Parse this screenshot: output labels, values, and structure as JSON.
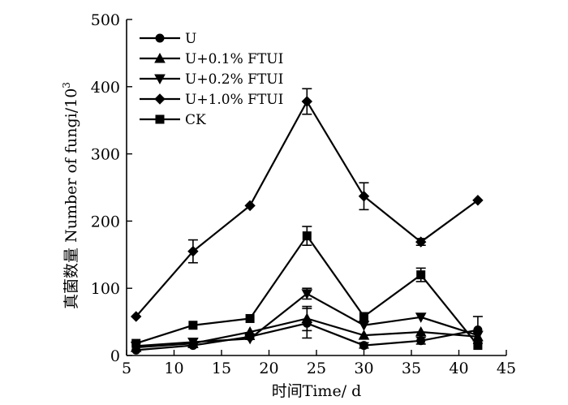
{
  "chart_data": {
    "type": "line",
    "title": "",
    "xlabel": "时间Time/ d",
    "ylabel": "真菌数量 Number of fungi/10",
    "ylabel_sup": "3",
    "xlim": [
      5,
      45
    ],
    "ylim": [
      0,
      500
    ],
    "xticks": [
      5,
      10,
      15,
      20,
      25,
      30,
      35,
      40,
      45
    ],
    "yticks": [
      0,
      100,
      200,
      300,
      400,
      500
    ],
    "grid": false,
    "legend_position": "top-left",
    "x": [
      6,
      12,
      18,
      24,
      30,
      36,
      42
    ],
    "series": [
      {
        "name": "U",
        "marker": "circle",
        "values": [
          8,
          15,
          28,
          48,
          15,
          22,
          38
        ],
        "errors": [
          0,
          3,
          4,
          22,
          4,
          5,
          20
        ]
      },
      {
        "name": "U+0.1% FTUI",
        "marker": "triangle-up",
        "values": [
          12,
          18,
          35,
          55,
          30,
          35,
          28
        ],
        "errors": [
          0,
          0,
          0,
          18,
          0,
          0,
          0
        ]
      },
      {
        "name": "U+0.2% FTUI",
        "marker": "triangle-down",
        "values": [
          14,
          20,
          25,
          92,
          45,
          57,
          30
        ],
        "errors": [
          0,
          0,
          0,
          8,
          0,
          0,
          0
        ]
      },
      {
        "name": "U+1.0% FTUI",
        "marker": "diamond",
        "values": [
          58,
          155,
          223,
          378,
          237,
          169,
          231
        ],
        "errors": [
          0,
          17,
          0,
          19,
          20,
          5,
          0
        ]
      },
      {
        "name": "CK",
        "marker": "square",
        "values": [
          18,
          45,
          55,
          178,
          58,
          120,
          15
        ],
        "errors": [
          0,
          0,
          0,
          14,
          0,
          10,
          0
        ]
      }
    ]
  }
}
